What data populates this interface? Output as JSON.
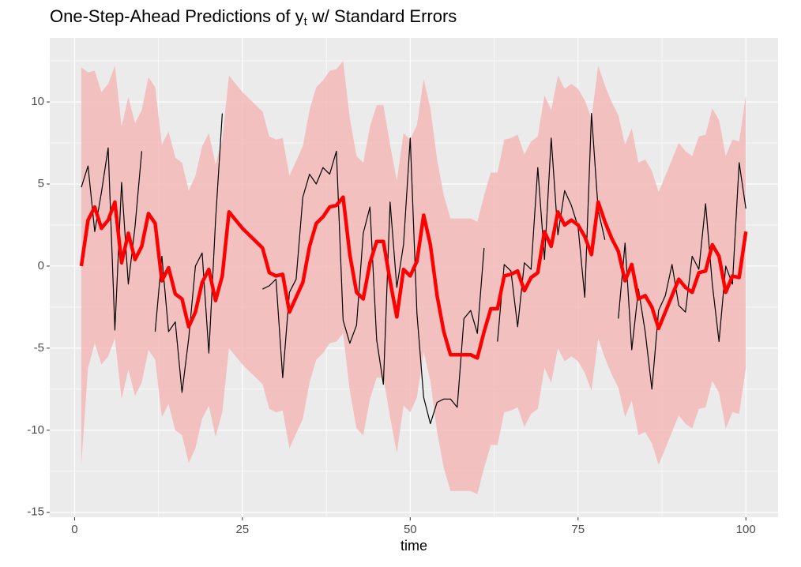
{
  "chart_data": {
    "type": "line",
    "title": {
      "before": "One-Step-Ahead Predictions of y",
      "subscript": "t",
      "after": " w/ Standard Errors"
    },
    "x_label": "time",
    "xlim": [
      -3.7,
      104.8
    ],
    "ylim": [
      -15.3,
      13.9
    ],
    "xticks": [
      0,
      25,
      50,
      75,
      100
    ],
    "yticks": [
      -15,
      -10,
      -5,
      0,
      5,
      10
    ],
    "x_minor_ticks": [
      12.5,
      37.5,
      62.5,
      87.5
    ],
    "y_minor_ticks": [
      -12.5,
      -7.5,
      -2.5,
      2.5,
      7.5,
      12.5
    ],
    "grid": true,
    "x": [
      1,
      2,
      3,
      4,
      5,
      6,
      7,
      8,
      9,
      10,
      11,
      12,
      13,
      14,
      15,
      16,
      17,
      18,
      19,
      20,
      21,
      22,
      23,
      24,
      25,
      26,
      27,
      28,
      29,
      30,
      31,
      32,
      33,
      34,
      35,
      36,
      37,
      38,
      39,
      40,
      41,
      42,
      43,
      44,
      45,
      46,
      47,
      48,
      49,
      50,
      51,
      52,
      53,
      54,
      55,
      56,
      57,
      58,
      59,
      60,
      61,
      62,
      63,
      64,
      65,
      66,
      67,
      68,
      69,
      70,
      71,
      72,
      73,
      74,
      75,
      76,
      77,
      78,
      79,
      80,
      81,
      82,
      83,
      84,
      85,
      86,
      87,
      88,
      89,
      90,
      91,
      92,
      93,
      94,
      95,
      96,
      97,
      98,
      99,
      100
    ],
    "band": {
      "color": "#f4b8b8",
      "upper": [
        12.1,
        11.8,
        11.9,
        10.6,
        11.1,
        12.2,
        8.5,
        10.3,
        8.7,
        9.5,
        11.5,
        10.9,
        7.4,
        8.2,
        6.6,
        6.3,
        4.6,
        5.5,
        7.3,
        8.1,
        6.2,
        7.7,
        11.6,
        11.1,
        10.6,
        10.2,
        9.8,
        9.4,
        7.9,
        7.7,
        7.8,
        5.5,
        6.4,
        7.3,
        9.5,
        10.9,
        11.3,
        11.9,
        12.0,
        12.5,
        9.0,
        6.7,
        6.3,
        8.5,
        9.8,
        9.8,
        7.4,
        5.2,
        8.1,
        7.7,
        8.6,
        11.4,
        9.6,
        6.5,
        4.3,
        2.9,
        2.9,
        2.9,
        2.9,
        2.7,
        4.3,
        5.7,
        5.7,
        7.7,
        7.8,
        8.0,
        6.8,
        7.6,
        7.9,
        10.4,
        9.5,
        11.6,
        10.8,
        11.1,
        10.8,
        10.1,
        9.0,
        12.2,
        11.0,
        10.0,
        9.2,
        7.4,
        8.4,
        6.3,
        6.5,
        5.8,
        4.5,
        5.5,
        6.5,
        7.5,
        7.0,
        6.7,
        7.9,
        8.0,
        9.6,
        8.9,
        6.7,
        7.7,
        7.6,
        10.4
      ],
      "lower": [
        -12.1,
        -6.2,
        -4.7,
        -6.0,
        -5.5,
        -4.4,
        -8.1,
        -6.3,
        -7.9,
        -7.1,
        -5.1,
        -5.7,
        -9.2,
        -8.4,
        -10.0,
        -10.3,
        -12.0,
        -11.1,
        -9.3,
        -8.5,
        -10.4,
        -8.9,
        -5.0,
        -5.5,
        -6.0,
        -6.4,
        -6.8,
        -7.2,
        -8.7,
        -8.9,
        -8.8,
        -11.1,
        -10.2,
        -9.3,
        -7.1,
        -5.7,
        -5.3,
        -4.7,
        -4.6,
        -4.1,
        -7.6,
        -9.9,
        -10.3,
        -8.1,
        -6.8,
        -6.8,
        -9.2,
        -11.4,
        -8.5,
        -8.9,
        -8.0,
        -5.2,
        -7.0,
        -10.1,
        -12.3,
        -13.7,
        -13.7,
        -13.7,
        -13.7,
        -13.9,
        -12.3,
        -10.9,
        -10.9,
        -8.9,
        -8.8,
        -8.6,
        -9.8,
        -9.0,
        -8.7,
        -6.2,
        -7.1,
        -5.0,
        -5.8,
        -5.5,
        -5.8,
        -6.5,
        -7.6,
        -4.4,
        -5.6,
        -6.6,
        -7.4,
        -9.2,
        -8.2,
        -10.3,
        -10.1,
        -10.8,
        -12.1,
        -11.1,
        -10.1,
        -9.1,
        -9.6,
        -9.9,
        -8.7,
        -8.6,
        -7.0,
        -7.7,
        -9.9,
        -8.9,
        -9.0,
        -6.2
      ]
    },
    "series": [
      {
        "color": "#000000",
        "width": 1.2,
        "values": [
          4.8,
          6.1,
          2.1,
          4.5,
          7.2,
          -3.9,
          5.1,
          -1.1,
          2.4,
          7.0,
          null,
          -4.0,
          0.6,
          -4.0,
          -3.4,
          -7.7,
          -4.4,
          0.0,
          0.8,
          -5.3,
          2.8,
          9.3,
          null,
          null,
          null,
          null,
          null,
          -1.4,
          -1.2,
          -0.8,
          -6.8,
          -1.6,
          -0.8,
          4.2,
          5.6,
          5.0,
          6.0,
          5.6,
          7.0,
          -3.3,
          -4.7,
          -3.6,
          2.0,
          3.6,
          -4.5,
          -7.2,
          3.9,
          -1.3,
          1.3,
          7.8,
          -2.9,
          -8.0,
          -9.6,
          -8.3,
          -8.1,
          -8.1,
          -8.6,
          -3.2,
          -2.7,
          -4.1,
          1.1,
          null,
          -4.6,
          0.1,
          -0.3,
          -3.7,
          0.2,
          -0.2,
          6.0,
          0.4,
          7.8,
          1.9,
          4.6,
          3.7,
          2.4,
          -1.9,
          9.3,
          3.4,
          1.6,
          null,
          -3.2,
          1.4,
          -5.1,
          -1.4,
          -4.0,
          -7.5,
          -2.7,
          -1.8,
          0.1,
          -2.4,
          -2.8,
          0.6,
          -0.2,
          3.8,
          -1.1,
          -4.6,
          0.0,
          -1.1,
          6.3,
          3.5
        ]
      },
      {
        "color": "#ff0000",
        "width": 4.5,
        "values": [
          0,
          2.8,
          3.6,
          2.3,
          2.8,
          3.9,
          0.2,
          2.0,
          0.4,
          1.2,
          3.2,
          2.6,
          -0.9,
          -0.1,
          -1.7,
          -2.0,
          -3.7,
          -2.8,
          -1.0,
          -0.2,
          -2.1,
          -0.6,
          3.3,
          2.8,
          2.3,
          1.9,
          1.5,
          1.1,
          -0.4,
          -0.6,
          -0.5,
          -2.8,
          -1.9,
          -1.0,
          1.2,
          2.6,
          3.0,
          3.6,
          3.7,
          4.2,
          0.7,
          -1.6,
          -2.0,
          0.2,
          1.5,
          1.5,
          -0.9,
          -3.1,
          -0.2,
          -0.6,
          0.3,
          3.1,
          1.3,
          -1.8,
          -4.0,
          -5.4,
          -5.4,
          -5.4,
          -5.4,
          -5.6,
          -4.0,
          -2.6,
          -2.6,
          -0.6,
          -0.5,
          -0.3,
          -1.5,
          -0.7,
          -0.4,
          2.1,
          1.2,
          3.3,
          2.5,
          2.8,
          2.5,
          1.8,
          0.7,
          3.9,
          2.7,
          1.7,
          0.9,
          -0.9,
          0.1,
          -2.0,
          -1.8,
          -2.5,
          -3.8,
          -2.8,
          -1.8,
          -0.8,
          -1.3,
          -1.6,
          -0.4,
          -0.3,
          1.3,
          0.6,
          -1.6,
          -0.6,
          -0.7,
          2.1
        ]
      }
    ]
  }
}
